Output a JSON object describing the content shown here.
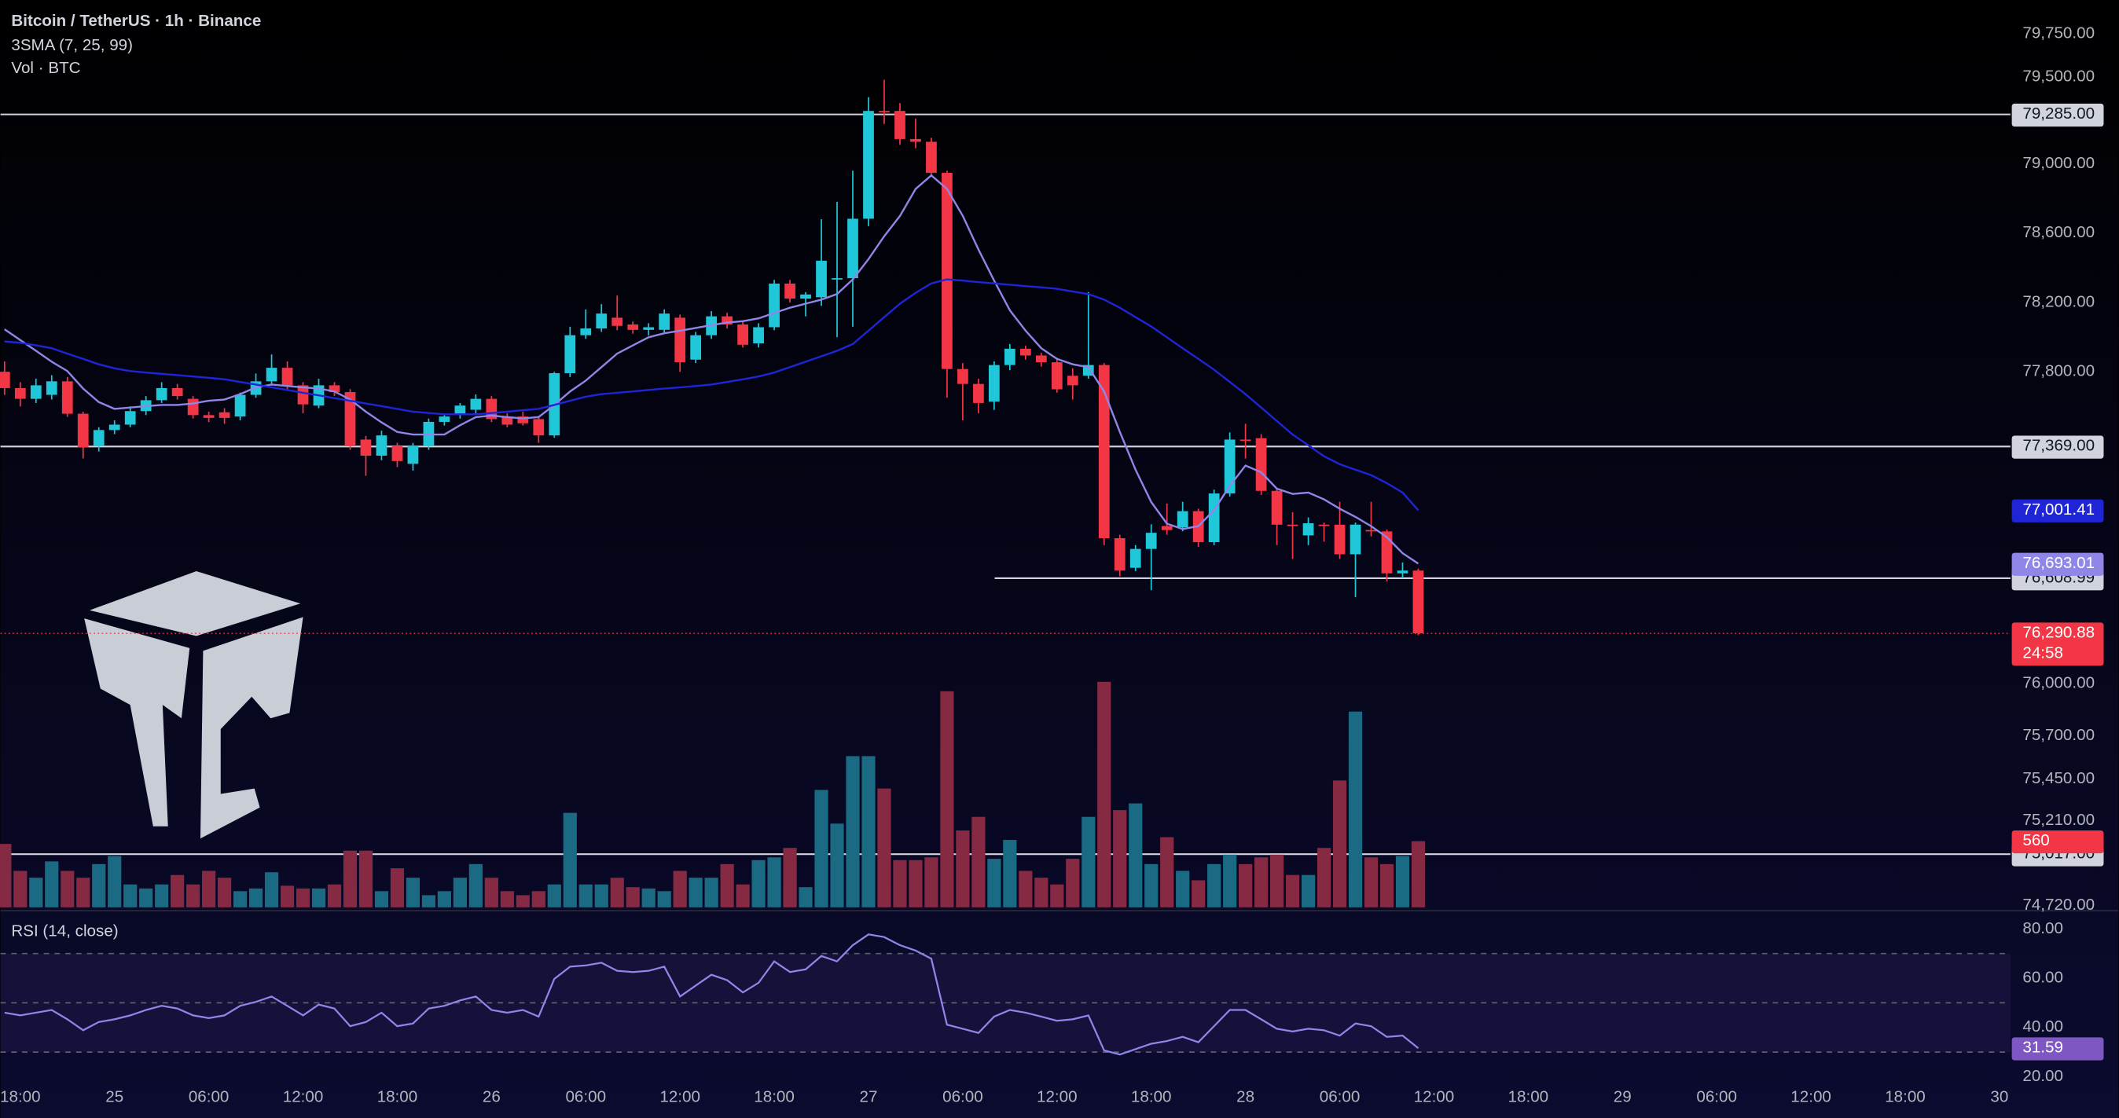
{
  "header": {
    "symbol": "Bitcoin / TetherUS · 1h · Binance",
    "indicator": "3SMA (7, 25, 99)"
  },
  "chart_data": [
    {
      "type": "candlestick",
      "xticks": [
        {
          "value": 1,
          "label": "18:00"
        },
        {
          "value": 7,
          "label": "25"
        },
        {
          "value": 13,
          "label": "06:00"
        },
        {
          "value": 19,
          "label": "12:00"
        },
        {
          "value": 25,
          "label": "18:00"
        },
        {
          "value": 31,
          "label": "26"
        },
        {
          "value": 37,
          "label": "06:00"
        },
        {
          "value": 43,
          "label": "12:00"
        },
        {
          "value": 49,
          "label": "18:00"
        },
        {
          "value": 55,
          "label": "27"
        },
        {
          "value": 61,
          "label": "06:00"
        },
        {
          "value": 67,
          "label": "12:00"
        },
        {
          "value": 73,
          "label": "18:00"
        },
        {
          "value": 79,
          "label": "28"
        },
        {
          "value": 85,
          "label": "06:00"
        },
        {
          "value": 91,
          "label": "12:00"
        },
        {
          "value": 97,
          "label": "18:00"
        },
        {
          "value": 103,
          "label": "29"
        },
        {
          "value": 109,
          "label": "06:00"
        },
        {
          "value": 115,
          "label": "12:00"
        },
        {
          "value": 121,
          "label": "18:00"
        },
        {
          "value": 127,
          "label": "30"
        }
      ],
      "xlim": [
        -0.26,
        127.7
      ],
      "ylim": [
        74710,
        79945
      ],
      "yticks": [
        {
          "value": 74720,
          "label": "74,720.00"
        },
        {
          "value": 75210,
          "label": "75,210.00"
        },
        {
          "value": 75450,
          "label": "75,450.00"
        },
        {
          "value": 75700,
          "label": "75,700.00"
        },
        {
          "value": 76000,
          "label": "76,000.00"
        },
        {
          "value": 77800,
          "label": "77,800.00"
        },
        {
          "value": 78200,
          "label": "78,200.00"
        },
        {
          "value": 78600,
          "label": "78,600.00"
        },
        {
          "value": 79000,
          "label": "79,000.00"
        },
        {
          "value": 79500,
          "label": "79,500.00"
        },
        {
          "value": 79750,
          "label": "79,750.00"
        }
      ],
      "up_color": "#20c7d9",
      "down_color": "#f23645",
      "open": [
        77800,
        77706,
        77644,
        77667,
        77745,
        77558,
        77371,
        77464,
        77495,
        77573,
        77636,
        77706,
        77644,
        77550,
        77566,
        77542,
        77667,
        77745,
        77823,
        77722,
        77605,
        77722,
        77683,
        77409,
        77316,
        77371,
        77269,
        77371,
        77511,
        77550,
        77581,
        77644,
        77542,
        77542,
        77527,
        77433,
        77792,
        78011,
        78050,
        78112,
        78073,
        78042,
        78042,
        78112,
        77870,
        78011,
        78120,
        78073,
        77964,
        78057,
        78309,
        78222,
        78230,
        78332,
        78340,
        78683,
        79305,
        79305,
        79143,
        79127,
        78948,
        77816,
        77730,
        77628,
        77839,
        77933,
        77894,
        77855,
        77777,
        77777,
        77839,
        76840,
        76669,
        76778,
        76910,
        76903,
        76996,
        76817,
        77098,
        77409,
        77417,
        77113,
        76918,
        76856,
        76918,
        76918,
        76747,
        76887,
        76879,
        76637,
        76653
      ],
      "high": [
        77860,
        77740,
        77760,
        77780,
        77770,
        77570,
        77480,
        77520,
        77600,
        77660,
        77740,
        77730,
        77660,
        77570,
        77590,
        77680,
        77790,
        77900,
        77860,
        77740,
        77760,
        77740,
        77700,
        77430,
        77460,
        77390,
        77390,
        77530,
        77560,
        77620,
        77670,
        77660,
        77560,
        77570,
        77545,
        77800,
        78060,
        78160,
        78190,
        78240,
        78090,
        78080,
        78160,
        78130,
        78030,
        78150,
        78140,
        78090,
        78080,
        78330,
        78330,
        78260,
        78680,
        78780,
        78960,
        79384,
        79485,
        79350,
        79260,
        79150,
        78960,
        77850,
        77760,
        77860,
        77960,
        77950,
        77910,
        77880,
        77820,
        78260,
        77850,
        76860,
        76800,
        76920,
        77040,
        77050,
        77010,
        77120,
        77450,
        77500,
        77440,
        77130,
        76990,
        76960,
        76930,
        77050,
        76930,
        77050,
        76890,
        76700,
        76665
      ],
      "low": [
        77667,
        77600,
        77620,
        77640,
        77540,
        77300,
        77340,
        77440,
        77480,
        77550,
        77620,
        77640,
        77530,
        77510,
        77500,
        77520,
        77650,
        77720,
        77700,
        77560,
        77590,
        77660,
        77350,
        77200,
        77290,
        77250,
        77230,
        77350,
        77490,
        77530,
        77560,
        77510,
        77480,
        77490,
        77390,
        77420,
        77770,
        77990,
        78030,
        78040,
        78020,
        78010,
        78020,
        77800,
        77850,
        77990,
        78050,
        77940,
        77940,
        78040,
        78200,
        78120,
        78180,
        78000,
        78060,
        78640,
        79230,
        79110,
        79090,
        78930,
        77650,
        77520,
        77560,
        77580,
        77810,
        77870,
        77830,
        77680,
        77640,
        77760,
        76800,
        76620,
        76650,
        76540,
        76860,
        76880,
        76790,
        76800,
        77080,
        77300,
        77090,
        76800,
        76720,
        76800,
        76820,
        76720,
        76500,
        76850,
        76590,
        76610,
        76280
      ],
      "close": [
        77706,
        77644,
        77722,
        77745,
        77558,
        77363,
        77464,
        77495,
        77573,
        77636,
        77706,
        77660,
        77550,
        77534,
        77534,
        77667,
        77745,
        77823,
        77722,
        77612,
        77722,
        77683,
        77371,
        77316,
        77433,
        77285,
        77371,
        77511,
        77542,
        77605,
        77644,
        77527,
        77495,
        77503,
        77433,
        77792,
        78011,
        78050,
        78136,
        78065,
        78042,
        78057,
        78136,
        77855,
        78011,
        78120,
        78073,
        77956,
        78057,
        78309,
        78222,
        78246,
        78441,
        78340,
        78683,
        79305,
        79298,
        79143,
        79127,
        78948,
        77816,
        77730,
        77620,
        77839,
        77933,
        77894,
        77855,
        77699,
        77722,
        77839,
        76840,
        76653,
        76778,
        76871,
        76887,
        76996,
        76817,
        77098,
        77409,
        77402,
        77113,
        76918,
        76910,
        76926,
        76910,
        76747,
        76918,
        76879,
        76637,
        76653,
        76290.88
      ],
      "series": [
        {
          "color": "#8f86e8",
          "last_label": "76,693.01",
          "values": [
            78045,
            77983,
            77921,
            77858,
            77804,
            77703,
            77625,
            77586,
            77594,
            77602,
            77609,
            77609,
            77617,
            77633,
            77640,
            77671,
            77710,
            77726,
            77718,
            77710,
            77703,
            77687,
            77640,
            77570,
            77508,
            77453,
            77438,
            77438,
            77438,
            77492,
            77539,
            77547,
            77539,
            77531,
            77539,
            77609,
            77687,
            77749,
            77827,
            77905,
            77952,
            77999,
            78022,
            78037,
            78053,
            78069,
            78084,
            78092,
            78108,
            78139,
            78170,
            78193,
            78216,
            78248,
            78333,
            78450,
            78582,
            78699,
            78855,
            78933,
            78855,
            78699,
            78505,
            78326,
            78154,
            78037,
            77936,
            77874,
            77843,
            77827,
            77687,
            77453,
            77235,
            77049,
            76924,
            76893,
            76909,
            77002,
            77142,
            77259,
            77220,
            77126,
            77095,
            77103,
            77064,
            77010,
            76963,
            76909,
            76846,
            76753,
            76693.01
          ]
        },
        {
          "color": "#1f25d6",
          "last_label": "77,001.41",
          "values": [
            77975,
            77967,
            77952,
            77936,
            77905,
            77874,
            77843,
            77820,
            77804,
            77796,
            77788,
            77781,
            77773,
            77765,
            77757,
            77741,
            77726,
            77710,
            77695,
            77679,
            77664,
            77648,
            77633,
            77617,
            77602,
            77586,
            77570,
            77562,
            77555,
            77555,
            77555,
            77562,
            77570,
            77578,
            77586,
            77609,
            77633,
            77656,
            77671,
            77679,
            77687,
            77695,
            77703,
            77710,
            77718,
            77726,
            77741,
            77757,
            77773,
            77796,
            77827,
            77858,
            77889,
            77921,
            77960,
            78037,
            78115,
            78193,
            78255,
            78310,
            78333,
            78326,
            78318,
            78310,
            78302,
            78294,
            78287,
            78279,
            78263,
            78248,
            78216,
            78170,
            78115,
            78061,
            77999,
            77936,
            77874,
            77812,
            77741,
            77671,
            77594,
            77516,
            77438,
            77376,
            77313,
            77267,
            77235,
            77204,
            77158,
            77103,
            77001.41
          ]
        }
      ],
      "hlines": [
        {
          "value": 79285,
          "label": "79,285.00"
        },
        {
          "value": 77369,
          "label": "77,369.00"
        },
        {
          "value": 76608.99,
          "label": "76,608.99"
        },
        {
          "value": 75017,
          "label": "75,017.00"
        }
      ],
      "last_price": {
        "value": 76290.88,
        "label": "76,290.88",
        "countdown": "24:58"
      }
    },
    {
      "type": "bar",
      "title": "Vol · BTC",
      "ylim": [
        0,
        7680
      ],
      "up_color": "#1a6a84",
      "down_color": "#862a44",
      "last_label": "560",
      "values": [
        537,
        309,
        251,
        389,
        309,
        251,
        366,
        434,
        194,
        160,
        194,
        274,
        194,
        309,
        251,
        137,
        160,
        297,
        183,
        160,
        160,
        194,
        480,
        480,
        137,
        331,
        251,
        103,
        137,
        251,
        366,
        251,
        137,
        103,
        137,
        194,
        800,
        194,
        194,
        251,
        171,
        160,
        137,
        309,
        251,
        251,
        366,
        194,
        400,
        423,
        503,
        171,
        994,
        709,
        1280,
        1280,
        1006,
        400,
        400,
        423,
        1829,
        651,
        766,
        411,
        571,
        309,
        251,
        194,
        411,
        766,
        1909,
        823,
        880,
        366,
        594,
        309,
        229,
        366,
        446,
        366,
        423,
        446,
        274,
        274,
        503,
        1074,
        1657,
        423,
        366,
        434,
        560
      ]
    },
    {
      "type": "line",
      "title": "RSI (14, close)",
      "color": "#8f86e8",
      "ylim": [
        18.6,
        87.1
      ],
      "yticks": [
        {
          "value": 20,
          "label": "20.00"
        },
        {
          "value": 40,
          "label": "40.00"
        },
        {
          "value": 60,
          "label": "60.00"
        },
        {
          "value": 80,
          "label": "80.00"
        }
      ],
      "levels": [
        70,
        50,
        30
      ],
      "last_label": "31.59",
      "values": [
        46.0,
        44.9,
        46.0,
        47.1,
        43.3,
        38.9,
        42.2,
        43.3,
        44.9,
        47.1,
        48.8,
        47.7,
        44.9,
        43.8,
        44.9,
        48.8,
        50.4,
        52.6,
        48.8,
        44.9,
        49.3,
        47.7,
        40.5,
        42.2,
        46.0,
        40.5,
        41.6,
        47.7,
        48.8,
        51.0,
        52.6,
        47.1,
        46.0,
        47.1,
        44.4,
        59.7,
        64.7,
        65.2,
        66.3,
        63.0,
        62.5,
        63.0,
        64.7,
        52.6,
        57.0,
        61.4,
        59.2,
        54.2,
        58.1,
        66.8,
        62.5,
        63.6,
        69.0,
        66.8,
        73.4,
        77.8,
        76.7,
        73.4,
        71.2,
        67.9,
        41.1,
        39.5,
        37.8,
        44.4,
        47.1,
        46.0,
        44.4,
        42.7,
        43.3,
        44.9,
        30.7,
        29.0,
        31.2,
        33.4,
        34.5,
        36.2,
        34.0,
        40.5,
        47.1,
        47.1,
        43.3,
        39.5,
        38.4,
        39.5,
        38.9,
        36.7,
        41.6,
        40.5,
        36.2,
        36.7,
        31.59
      ]
    }
  ]
}
